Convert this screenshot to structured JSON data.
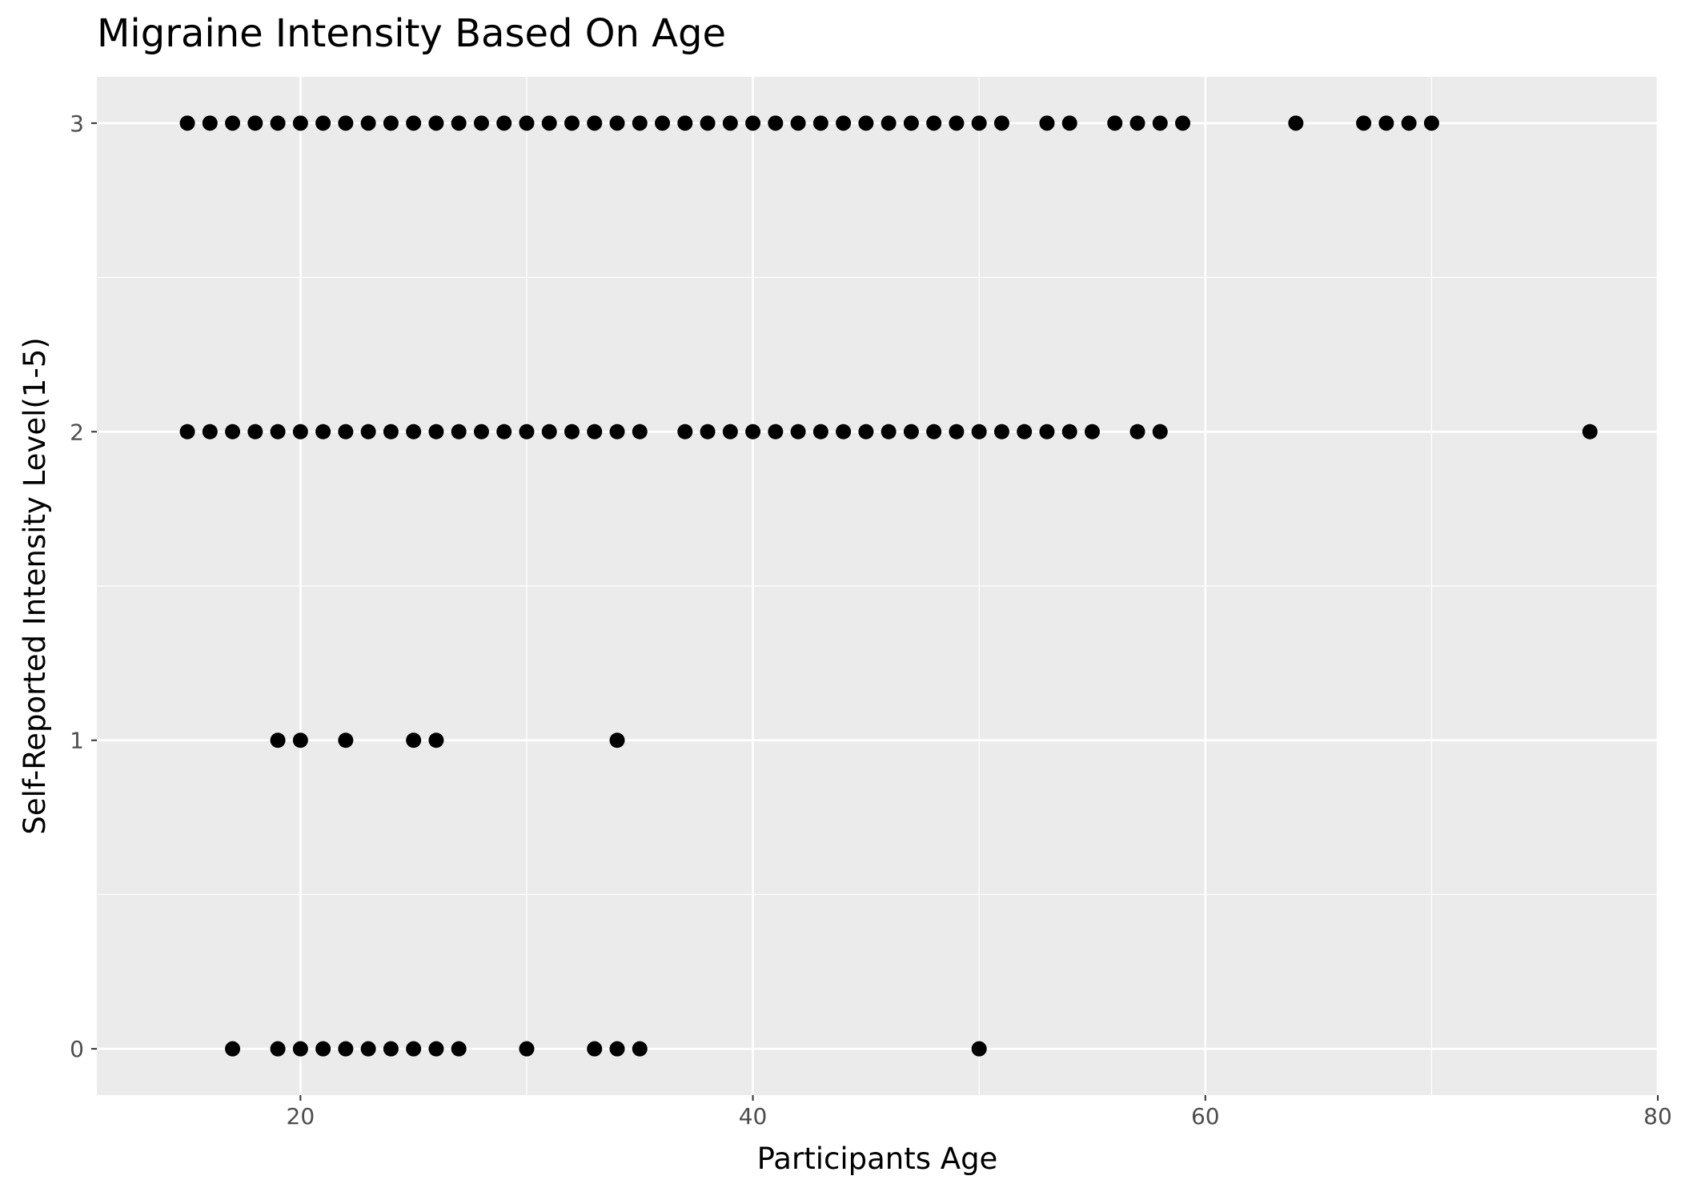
{
  "chart_data": {
    "type": "scatter",
    "title": "Migraine Intensity Based On Age",
    "xlabel": "Participants Age",
    "ylabel": "Self-Reported Intensity Level(1-5)",
    "xlim": [
      11,
      80
    ],
    "ylim": [
      -0.15,
      3.15
    ],
    "x_ticks": [
      20,
      40,
      60,
      80
    ],
    "y_ticks": [
      0,
      1,
      2,
      3
    ],
    "grid": true,
    "legend": "none",
    "colors": {
      "panel": "#ebebeb",
      "grid": "#ffffff",
      "point": "#000000",
      "tick_text": "#4d4d4d"
    },
    "points": [
      {
        "x": 15,
        "y": 3
      },
      {
        "x": 16,
        "y": 3
      },
      {
        "x": 17,
        "y": 3
      },
      {
        "x": 18,
        "y": 3
      },
      {
        "x": 19,
        "y": 3
      },
      {
        "x": 20,
        "y": 3
      },
      {
        "x": 21,
        "y": 3
      },
      {
        "x": 22,
        "y": 3
      },
      {
        "x": 23,
        "y": 3
      },
      {
        "x": 24,
        "y": 3
      },
      {
        "x": 25,
        "y": 3
      },
      {
        "x": 26,
        "y": 3
      },
      {
        "x": 27,
        "y": 3
      },
      {
        "x": 28,
        "y": 3
      },
      {
        "x": 29,
        "y": 3
      },
      {
        "x": 30,
        "y": 3
      },
      {
        "x": 31,
        "y": 3
      },
      {
        "x": 32,
        "y": 3
      },
      {
        "x": 33,
        "y": 3
      },
      {
        "x": 34,
        "y": 3
      },
      {
        "x": 35,
        "y": 3
      },
      {
        "x": 36,
        "y": 3
      },
      {
        "x": 37,
        "y": 3
      },
      {
        "x": 38,
        "y": 3
      },
      {
        "x": 39,
        "y": 3
      },
      {
        "x": 40,
        "y": 3
      },
      {
        "x": 41,
        "y": 3
      },
      {
        "x": 42,
        "y": 3
      },
      {
        "x": 43,
        "y": 3
      },
      {
        "x": 44,
        "y": 3
      },
      {
        "x": 45,
        "y": 3
      },
      {
        "x": 46,
        "y": 3
      },
      {
        "x": 47,
        "y": 3
      },
      {
        "x": 48,
        "y": 3
      },
      {
        "x": 49,
        "y": 3
      },
      {
        "x": 50,
        "y": 3
      },
      {
        "x": 51,
        "y": 3
      },
      {
        "x": 53,
        "y": 3
      },
      {
        "x": 54,
        "y": 3
      },
      {
        "x": 56,
        "y": 3
      },
      {
        "x": 57,
        "y": 3
      },
      {
        "x": 58,
        "y": 3
      },
      {
        "x": 59,
        "y": 3
      },
      {
        "x": 64,
        "y": 3
      },
      {
        "x": 67,
        "y": 3
      },
      {
        "x": 68,
        "y": 3
      },
      {
        "x": 69,
        "y": 3
      },
      {
        "x": 70,
        "y": 3
      },
      {
        "x": 15,
        "y": 2
      },
      {
        "x": 16,
        "y": 2
      },
      {
        "x": 17,
        "y": 2
      },
      {
        "x": 18,
        "y": 2
      },
      {
        "x": 19,
        "y": 2
      },
      {
        "x": 20,
        "y": 2
      },
      {
        "x": 21,
        "y": 2
      },
      {
        "x": 22,
        "y": 2
      },
      {
        "x": 23,
        "y": 2
      },
      {
        "x": 24,
        "y": 2
      },
      {
        "x": 25,
        "y": 2
      },
      {
        "x": 26,
        "y": 2
      },
      {
        "x": 27,
        "y": 2
      },
      {
        "x": 28,
        "y": 2
      },
      {
        "x": 29,
        "y": 2
      },
      {
        "x": 30,
        "y": 2
      },
      {
        "x": 31,
        "y": 2
      },
      {
        "x": 32,
        "y": 2
      },
      {
        "x": 33,
        "y": 2
      },
      {
        "x": 34,
        "y": 2
      },
      {
        "x": 35,
        "y": 2
      },
      {
        "x": 37,
        "y": 2
      },
      {
        "x": 38,
        "y": 2
      },
      {
        "x": 39,
        "y": 2
      },
      {
        "x": 40,
        "y": 2
      },
      {
        "x": 41,
        "y": 2
      },
      {
        "x": 42,
        "y": 2
      },
      {
        "x": 43,
        "y": 2
      },
      {
        "x": 44,
        "y": 2
      },
      {
        "x": 45,
        "y": 2
      },
      {
        "x": 46,
        "y": 2
      },
      {
        "x": 47,
        "y": 2
      },
      {
        "x": 48,
        "y": 2
      },
      {
        "x": 49,
        "y": 2
      },
      {
        "x": 50,
        "y": 2
      },
      {
        "x": 51,
        "y": 2
      },
      {
        "x": 52,
        "y": 2
      },
      {
        "x": 53,
        "y": 2
      },
      {
        "x": 54,
        "y": 2
      },
      {
        "x": 55,
        "y": 2
      },
      {
        "x": 57,
        "y": 2
      },
      {
        "x": 58,
        "y": 2
      },
      {
        "x": 77,
        "y": 2
      },
      {
        "x": 19,
        "y": 1
      },
      {
        "x": 20,
        "y": 1
      },
      {
        "x": 22,
        "y": 1
      },
      {
        "x": 25,
        "y": 1
      },
      {
        "x": 26,
        "y": 1
      },
      {
        "x": 34,
        "y": 1
      },
      {
        "x": 17,
        "y": 0
      },
      {
        "x": 19,
        "y": 0
      },
      {
        "x": 20,
        "y": 0
      },
      {
        "x": 21,
        "y": 0
      },
      {
        "x": 22,
        "y": 0
      },
      {
        "x": 23,
        "y": 0
      },
      {
        "x": 24,
        "y": 0
      },
      {
        "x": 25,
        "y": 0
      },
      {
        "x": 26,
        "y": 0
      },
      {
        "x": 27,
        "y": 0
      },
      {
        "x": 30,
        "y": 0
      },
      {
        "x": 33,
        "y": 0
      },
      {
        "x": 34,
        "y": 0
      },
      {
        "x": 35,
        "y": 0
      },
      {
        "x": 50,
        "y": 0
      }
    ]
  }
}
